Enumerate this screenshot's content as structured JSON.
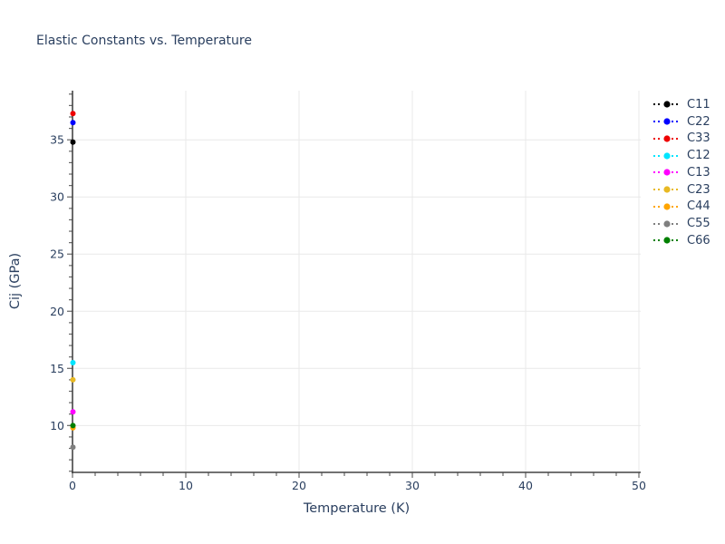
{
  "colors": {
    "background": "#ffffff",
    "text": "#2a3f5f",
    "grid": "#e9e9e9",
    "axis": "#444444",
    "tick": "#666666"
  },
  "chart_data": {
    "type": "scatter",
    "title": "Elastic Constants vs. Temperature",
    "xlabel": "Temperature (K)",
    "ylabel": "Cij (GPa)",
    "x": [
      0
    ],
    "series": [
      {
        "name": "C11",
        "color": "#000000",
        "values": [
          34.8
        ]
      },
      {
        "name": "C22",
        "color": "#0000ff",
        "values": [
          36.5
        ]
      },
      {
        "name": "C33",
        "color": "#ee0000",
        "values": [
          37.3
        ]
      },
      {
        "name": "C12",
        "color": "#00e5ff",
        "values": [
          15.5
        ]
      },
      {
        "name": "C13",
        "color": "#ff00ff",
        "values": [
          11.2
        ]
      },
      {
        "name": "C23",
        "color": "#e8b923",
        "values": [
          14.0
        ]
      },
      {
        "name": "C44",
        "color": "#ffa500",
        "values": [
          9.8
        ]
      },
      {
        "name": "C55",
        "color": "#7f7f7f",
        "values": [
          8.1
        ]
      },
      {
        "name": "C66",
        "color": "#008000",
        "values": [
          10.0
        ]
      }
    ],
    "xlim": [
      0,
      50
    ],
    "ylim": [
      5.9,
      39.3
    ],
    "x_ticks": [
      0,
      10,
      20,
      30,
      40,
      50
    ],
    "y_ticks": [
      10,
      15,
      20,
      25,
      30,
      35
    ],
    "x_minor_step": 2,
    "y_minor_step": 1,
    "grid": true,
    "legend_position": "right",
    "marker": "circle",
    "line_style": "dotted"
  }
}
